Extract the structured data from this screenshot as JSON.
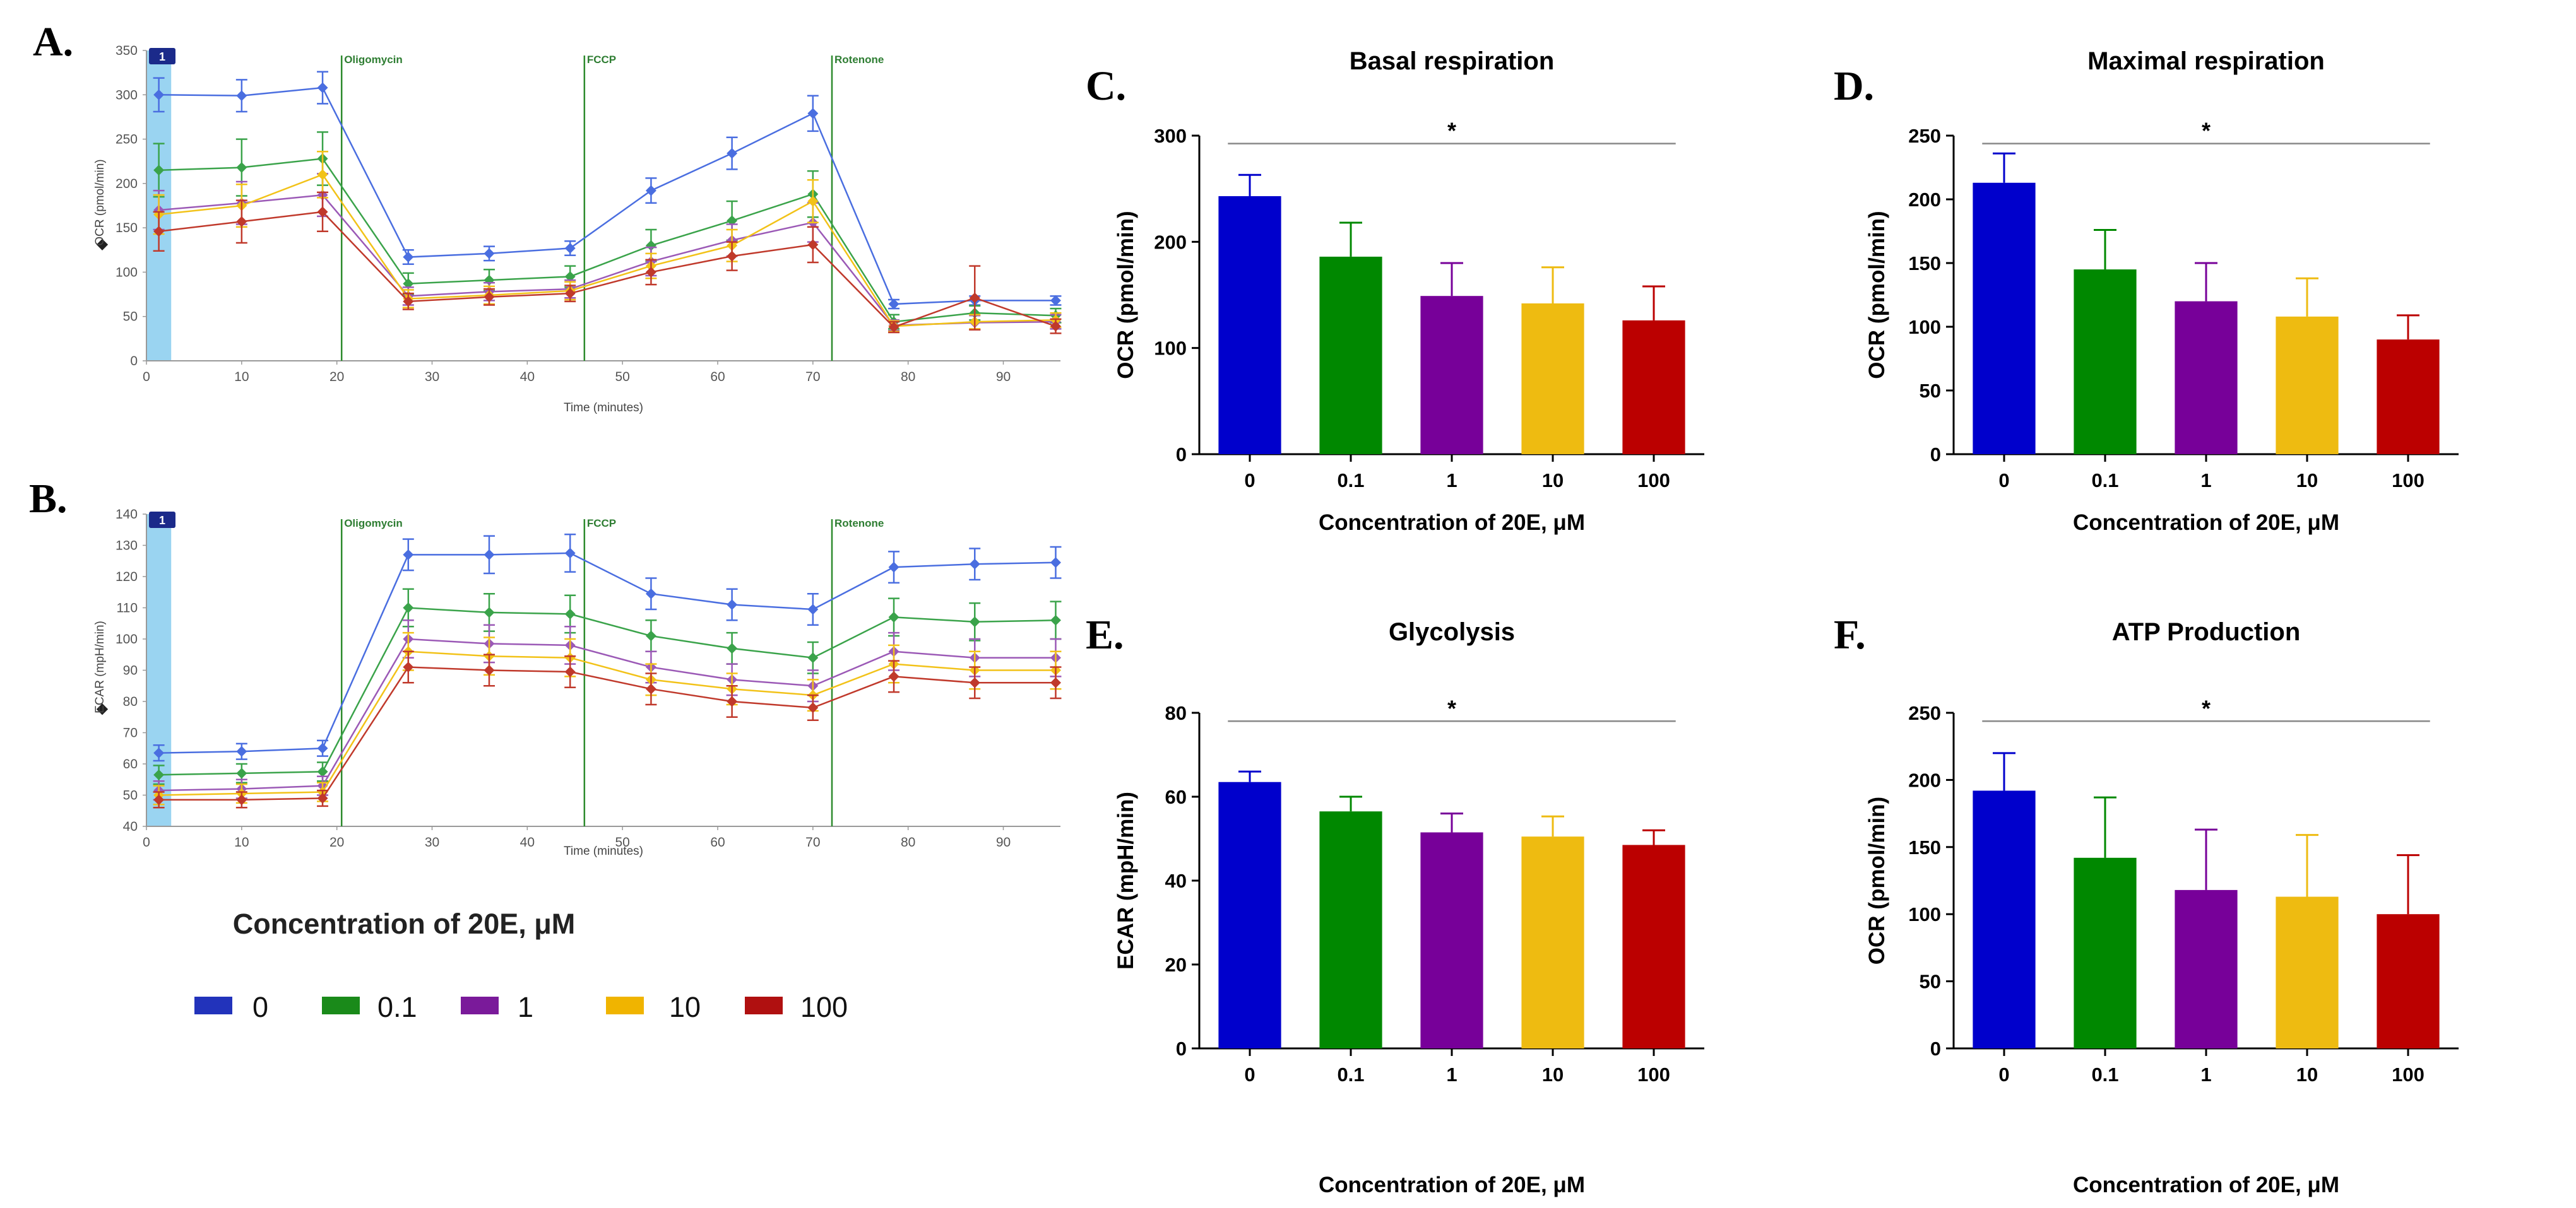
{
  "line_legend": {
    "title": "Concentration of 20E, μM",
    "items": [
      {
        "label": "0",
        "color": "#2233bb"
      },
      {
        "label": "0.1",
        "color": "#1a8a1a"
      },
      {
        "label": "1",
        "color": "#7a1a9a"
      },
      {
        "label": "10",
        "color": "#f0b400"
      },
      {
        "label": "100",
        "color": "#b01010"
      }
    ]
  },
  "chart_data": [
    {
      "id": "A",
      "panel": "A.",
      "type": "line",
      "ylabel": "OCR (pmol/min)",
      "xlabel": "Time (minutes)",
      "ylim": [
        0,
        350
      ],
      "yticks": [
        0,
        50,
        100,
        150,
        200,
        250,
        300,
        350
      ],
      "xlim": [
        0,
        96
      ],
      "xticks": [
        0,
        10,
        20,
        30,
        40,
        50,
        60,
        70,
        80,
        90
      ],
      "badge": "1",
      "injections": [
        {
          "label": "Oligomycin",
          "x": 20.5
        },
        {
          "label": "FCCP",
          "x": 46
        },
        {
          "label": "Rotenone",
          "x": 72
        }
      ],
      "x": [
        1.3,
        10,
        18.5,
        27.5,
        36,
        44.5,
        53,
        61.5,
        70,
        78.5,
        87,
        95.5
      ],
      "series": [
        {
          "name": "0",
          "color": "#4a6ee0",
          "values": [
            300,
            299,
            308,
            117,
            121,
            127,
            192,
            234,
            279,
            64,
            68,
            68
          ],
          "err": [
            19,
            18,
            18,
            8,
            8,
            8,
            14,
            18,
            20,
            5,
            5,
            5
          ]
        },
        {
          "name": "0.1",
          "color": "#3aa34a",
          "values": [
            215,
            218,
            228,
            87,
            91,
            95,
            130,
            158,
            188,
            44,
            54,
            51
          ],
          "err": [
            30,
            32,
            30,
            12,
            12,
            12,
            18,
            22,
            26,
            8,
            8,
            8
          ]
        },
        {
          "name": "1",
          "color": "#9b59b6",
          "values": [
            170,
            178,
            187,
            73,
            78,
            81,
            112,
            136,
            156,
            40,
            43,
            44
          ],
          "err": [
            22,
            24,
            24,
            10,
            10,
            10,
            16,
            18,
            22,
            6,
            8,
            8
          ]
        },
        {
          "name": "10",
          "color": "#f2c218",
          "values": [
            165,
            175,
            210,
            70,
            74,
            79,
            107,
            130,
            180,
            39,
            44,
            46
          ],
          "err": [
            22,
            24,
            26,
            10,
            10,
            10,
            14,
            18,
            24,
            6,
            8,
            8
          ]
        },
        {
          "name": "100",
          "color": "#c0392b",
          "values": [
            146,
            157,
            168,
            67,
            72,
            76,
            100,
            118,
            131,
            38,
            71,
            39
          ],
          "err": [
            22,
            24,
            22,
            9,
            9,
            9,
            14,
            16,
            20,
            6,
            36,
            8
          ]
        }
      ]
    },
    {
      "id": "B",
      "panel": "B.",
      "type": "line",
      "ylabel": "ECAR (mpH/min)",
      "xlabel": "Time (minutes)",
      "ylim": [
        40,
        140
      ],
      "yticks": [
        40,
        50,
        60,
        70,
        80,
        90,
        100,
        110,
        120,
        130,
        140
      ],
      "xlim": [
        0,
        96
      ],
      "xticks": [
        0,
        10,
        20,
        30,
        40,
        50,
        60,
        70,
        80,
        90
      ],
      "badge": "1",
      "injections": [
        {
          "label": "Oligomycin",
          "x": 20.5
        },
        {
          "label": "FCCP",
          "x": 46
        },
        {
          "label": "Rotenone",
          "x": 72
        }
      ],
      "x": [
        1.3,
        10,
        18.5,
        27.5,
        36,
        44.5,
        53,
        61.5,
        70,
        78.5,
        87,
        95.5
      ],
      "series": [
        {
          "name": "0",
          "color": "#4a6ee0",
          "values": [
            63.5,
            64,
            65,
            127,
            127,
            127.5,
            114.5,
            111,
            109.5,
            123,
            124,
            124.5
          ],
          "err": [
            2.5,
            2.5,
            2.5,
            5,
            6,
            6,
            5,
            5,
            5,
            5,
            5,
            5
          ]
        },
        {
          "name": "0.1",
          "color": "#3aa34a",
          "values": [
            56.5,
            57,
            57.5,
            110,
            108.5,
            108,
            101,
            97,
            94,
            107,
            105.5,
            106
          ],
          "err": [
            3,
            3,
            3,
            6,
            6,
            6,
            5,
            5,
            5,
            6,
            6,
            6
          ]
        },
        {
          "name": "1",
          "color": "#9b59b6",
          "values": [
            51.5,
            52,
            53,
            100,
            98.5,
            98,
            91,
            87,
            85,
            96,
            94,
            94
          ],
          "err": [
            3,
            3,
            3,
            6,
            6,
            6,
            5,
            5,
            5,
            6,
            6,
            6
          ]
        },
        {
          "name": "10",
          "color": "#f2c218",
          "values": [
            50,
            50.5,
            51,
            96,
            94.5,
            94,
            87,
            84,
            82,
            92,
            90,
            90
          ],
          "err": [
            3,
            3,
            3,
            6,
            6,
            6,
            5,
            5,
            5,
            6,
            6,
            6
          ]
        },
        {
          "name": "100",
          "color": "#c0392b",
          "values": [
            48.5,
            48.5,
            49,
            91,
            90,
            89.5,
            84,
            80,
            78,
            88,
            86,
            86
          ],
          "err": [
            2.5,
            2.5,
            2.5,
            5,
            5,
            5,
            5,
            5,
            4,
            5,
            5,
            5
          ]
        }
      ]
    },
    {
      "id": "C",
      "panel": "C.",
      "type": "bar",
      "title": "Basal respiration",
      "ylabel": "OCR  (pmol/min)",
      "xlabel": "Concentration of 20E, μM",
      "categories": [
        "0",
        "0.1",
        "1",
        "10",
        "100"
      ],
      "values": [
        243,
        186,
        149,
        142,
        126
      ],
      "err": [
        20,
        32,
        31,
        34,
        32
      ],
      "colors": [
        "#0000cc",
        "#008800",
        "#770099",
        "#eebb11",
        "#bb0000"
      ],
      "ylim": [
        0,
        300
      ],
      "yticks": [
        0,
        100,
        200,
        300
      ],
      "significance": "*"
    },
    {
      "id": "D",
      "panel": "D.",
      "type": "bar",
      "title": "Maximal respiration",
      "ylabel": "OCR  (pmol/min)",
      "xlabel": "Concentration of 20E, μM",
      "categories": [
        "0",
        "0.1",
        "1",
        "10",
        "100"
      ],
      "values": [
        213,
        145,
        120,
        108,
        90
      ],
      "err": [
        23,
        31,
        30,
        30,
        19
      ],
      "colors": [
        "#0000cc",
        "#008800",
        "#770099",
        "#eebb11",
        "#bb0000"
      ],
      "ylim": [
        0,
        250
      ],
      "yticks": [
        0,
        50,
        100,
        150,
        200,
        250
      ],
      "significance": "*"
    },
    {
      "id": "E",
      "panel": "E.",
      "type": "bar",
      "title": "Glycolysis",
      "ylabel": "ECAR (mpH/min)",
      "xlabel": "Concentration of 20E, μM",
      "categories": [
        "0",
        "0.1",
        "1",
        "10",
        "100"
      ],
      "values": [
        63.5,
        56.5,
        51.5,
        50.5,
        48.5
      ],
      "err": [
        2.5,
        3.5,
        4.5,
        4.8,
        3.5
      ],
      "colors": [
        "#0000cc",
        "#008800",
        "#770099",
        "#eebb11",
        "#bb0000"
      ],
      "ylim": [
        0,
        80
      ],
      "yticks": [
        0,
        20,
        40,
        60,
        80
      ],
      "significance": "*"
    },
    {
      "id": "F",
      "panel": "F.",
      "type": "bar",
      "title": "ATP Production",
      "ylabel": "OCR  (pmol/min)",
      "xlabel": "Concentration of 20E, μM",
      "categories": [
        "0",
        "0.1",
        "1",
        "10",
        "100"
      ],
      "values": [
        192,
        142,
        118,
        113,
        100
      ],
      "err": [
        28,
        45,
        45,
        46,
        44
      ],
      "colors": [
        "#0000cc",
        "#008800",
        "#770099",
        "#eebb11",
        "#bb0000"
      ],
      "ylim": [
        0,
        250
      ],
      "yticks": [
        0,
        50,
        100,
        150,
        200,
        250
      ],
      "significance": "*"
    }
  ]
}
